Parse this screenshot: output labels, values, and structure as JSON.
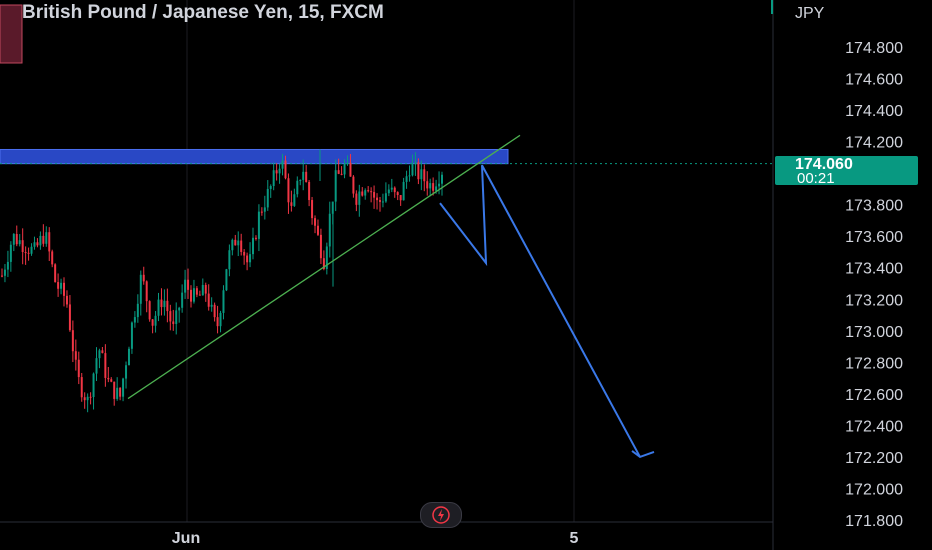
{
  "header": {
    "title": "British Pound / Japanese Yen, 15, FXCM"
  },
  "price_axis": {
    "currency": "JPY"
  },
  "last_price": {
    "value": "174.060",
    "countdown": "00:21"
  },
  "colors": {
    "up": "#089981",
    "down": "#f23645",
    "trend": "#4caf50",
    "zone": "#2948c5",
    "arrow": "#3a78e8"
  },
  "icons": {
    "flash": "lightning-icon"
  },
  "chart_data": {
    "type": "candlestick",
    "title": "British Pound / Japanese Yen, 15, FXCM",
    "ylabel": "JPY",
    "ylim": [
      171.78,
      174.98
    ],
    "y_ticks": [
      "174.800",
      "174.600",
      "174.400",
      "174.200",
      "174.000",
      "173.800",
      "173.600",
      "173.400",
      "173.200",
      "173.000",
      "172.800",
      "172.600",
      "172.400",
      "172.200",
      "172.000",
      "171.800"
    ],
    "x_ticks": [
      "Jun",
      "5"
    ],
    "last_price": 174.06,
    "resistance_zone": [
      174.06,
      174.15
    ],
    "trendline": [
      [
        172.57
      ],
      [
        174.24
      ]
    ],
    "price_path": [
      173.35,
      173.6,
      173.55,
      173.5,
      173.62,
      173.3,
      173.2,
      172.7,
      172.55,
      172.9,
      172.65,
      172.58,
      173.0,
      173.35,
      173.05,
      173.22,
      173.0,
      173.3,
      173.2,
      173.25,
      173.0,
      173.45,
      173.62,
      173.4,
      173.75,
      173.9,
      174.1,
      173.75,
      174.05,
      173.7,
      173.45,
      173.95,
      174.05,
      173.85,
      173.95,
      173.8,
      173.9,
      173.82,
      174.05,
      173.98,
      173.92,
      174.02
    ],
    "projection": [
      174.06,
      173.77,
      173.43,
      174.05,
      172.2
    ]
  }
}
